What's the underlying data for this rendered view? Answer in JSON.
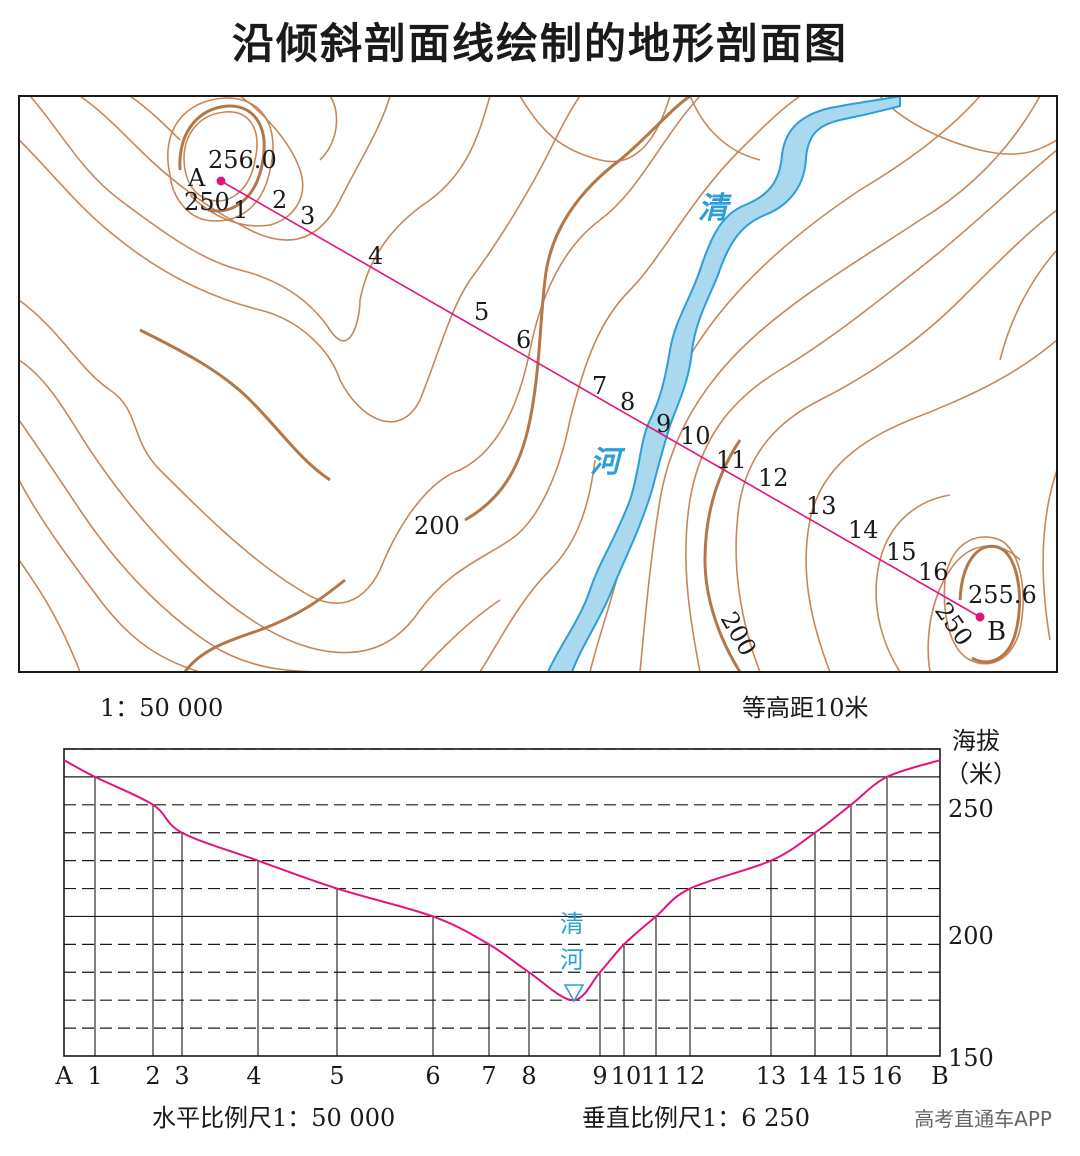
{
  "title": "沿倾斜剖面线绘制的地形剖面图",
  "map": {
    "scale": "1：50 000",
    "contour_interval": "等高距10米",
    "river_name": [
      "清",
      "河"
    ],
    "point_a": {
      "label": "A",
      "elevation": "256.0"
    },
    "point_b": {
      "label": "B",
      "elevation": "255.6"
    },
    "contour_labels": [
      "250",
      "200",
      "200",
      "250"
    ],
    "crossing_labels": [
      "1",
      "2",
      "3",
      "4",
      "5",
      "6",
      "7",
      "8",
      "9",
      "10",
      "11",
      "12",
      "13",
      "14",
      "15",
      "16"
    ],
    "colors": {
      "contour": "#c8875a",
      "contour_index": "#b3784a",
      "river_fill": "#a9d8ef",
      "river_edge": "#2b9fd6",
      "profile_line": "#e2157e",
      "frame": "#1a1a1a"
    }
  },
  "profile": {
    "axis_title": [
      "海拔",
      "（米）"
    ],
    "y_ticks": [
      "250",
      "200",
      "150"
    ],
    "x_labels": [
      "A",
      "1",
      "2",
      "3",
      "4",
      "5",
      "6",
      "7",
      "8",
      "9",
      "10",
      "11",
      "12",
      "13",
      "14",
      "15",
      "16",
      "B"
    ],
    "river_label": [
      "清",
      "河"
    ],
    "horizontal_scale": "水平比例尺1：50 000",
    "vertical_scale": "垂直比例尺1：6 250"
  },
  "watermark": "高考直通车APP",
  "chart_data": {
    "type": "line",
    "title": "",
    "xlabel": "",
    "ylabel": "海拔（米）",
    "ylim": [
      150,
      260
    ],
    "grid": true,
    "categories": [
      "A",
      "1",
      "2",
      "3",
      "4",
      "5",
      "6",
      "7",
      "8",
      "清河",
      "9",
      "10",
      "11",
      "12",
      "13",
      "14",
      "15",
      "16",
      "B"
    ],
    "series": [
      {
        "name": "",
        "values": [
          256,
          250,
          240,
          230,
          220,
          210,
          200,
          190,
          180,
          170,
          180,
          190,
          200,
          210,
          220,
          230,
          240,
          250,
          256
        ]
      }
    ]
  }
}
